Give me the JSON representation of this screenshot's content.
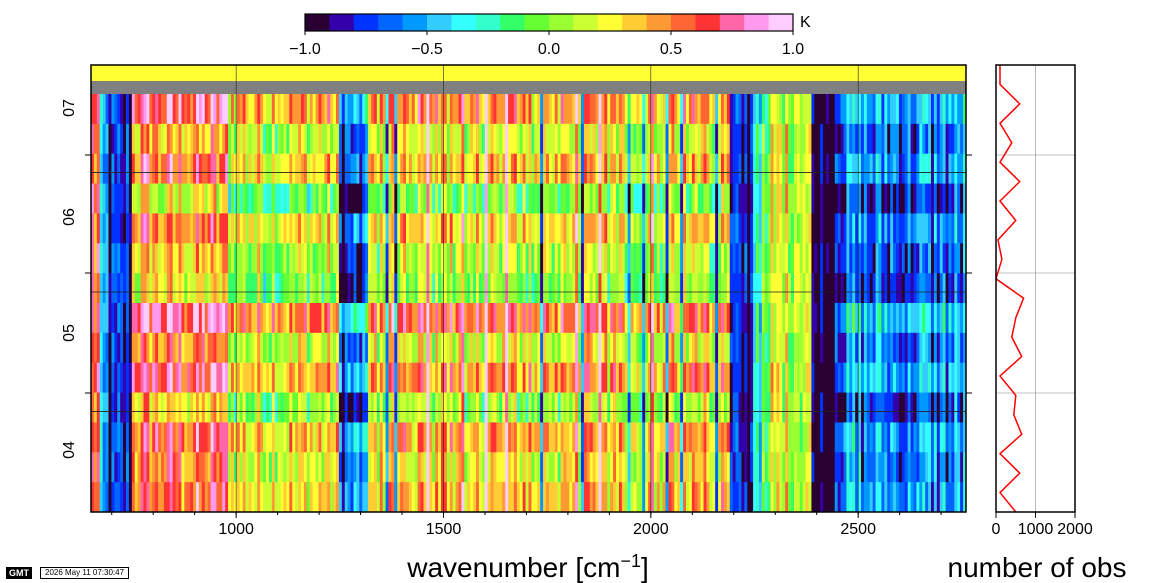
{
  "footer": {
    "logo_text": "GMT",
    "timestamp": "2026 May 11 07:30:47"
  },
  "colors": {
    "no_data": "#808080",
    "histogram_line": "#ff0000",
    "palette": [
      "#2a0033",
      "#3300aa",
      "#0033ff",
      "#0066ff",
      "#0099ff",
      "#33ccff",
      "#33ffff",
      "#33ffcc",
      "#33ff66",
      "#66ff33",
      "#99ff33",
      "#ccff33",
      "#ffff33",
      "#ffcc33",
      "#ff9933",
      "#ff6633",
      "#ff3333",
      "#ff66aa",
      "#ff99ee",
      "#ffccff"
    ]
  },
  "chart_data": [
    {
      "type": "heatmap",
      "colorbar": {
        "unit": "K",
        "range": [
          -1.0,
          1.0
        ],
        "ticks": [
          -1.0,
          -0.5,
          0.0,
          0.5,
          1.0
        ],
        "tick_labels": [
          "−1.0",
          "−0.5",
          "0.0",
          "0.5",
          "1.0"
        ],
        "placement": "top"
      },
      "x": {
        "label_main": "wavenumber [cm",
        "label_sup": "−1",
        "label_end": "]",
        "range": [
          650,
          2760
        ],
        "ticks": [
          1000,
          1500,
          2000,
          2500
        ],
        "tick_labels": [
          "1000",
          "1500",
          "2000",
          "2500"
        ]
      },
      "y": {
        "tick_labels": [
          "07",
          "06",
          "05",
          "04"
        ],
        "gridlines_at_row_boundary": [
          3,
          7,
          11
        ]
      },
      "rows_top_to_bottom": 15,
      "no_data_rows": [
        0
      ],
      "row_bias": [
        0,
        0.35,
        0.05,
        0.25,
        -0.15,
        0.2,
        0.0,
        -0.1,
        0.45,
        0.1,
        0.35,
        -0.05,
        0.3,
        0.15,
        0.25
      ],
      "spectral_regions": [
        {
          "from": 650,
          "to": 670,
          "value": 0.6
        },
        {
          "from": 670,
          "to": 690,
          "value": -0.6
        },
        {
          "from": 690,
          "to": 750,
          "value": -0.85
        },
        {
          "from": 750,
          "to": 980,
          "value": 0.35
        },
        {
          "from": 980,
          "to": 1250,
          "value": 0.05
        },
        {
          "from": 1250,
          "to": 1320,
          "value": -0.85
        },
        {
          "from": 1320,
          "to": 2190,
          "value": 0.1
        },
        {
          "from": 2190,
          "to": 2250,
          "value": -0.85
        },
        {
          "from": 2250,
          "to": 2290,
          "value": -0.2
        },
        {
          "from": 2290,
          "to": 2385,
          "value": 0.2
        },
        {
          "from": 2385,
          "to": 2440,
          "value": -1.0
        },
        {
          "from": 2440,
          "to": 2760,
          "value": -0.6
        }
      ],
      "grid": "dark lines at y tick boundaries and x ticks"
    },
    {
      "type": "line",
      "x": {
        "label": "number of obs",
        "range": [
          0,
          2000
        ],
        "ticks": [
          0,
          1000,
          2000
        ],
        "tick_labels": [
          "0",
          "1000",
          "2000"
        ]
      },
      "orientation": "vertical profile aligned with heatmap rows",
      "values_top_to_bottom": [
        100,
        100,
        600,
        100,
        400,
        100,
        600,
        100,
        500,
        50,
        150,
        0,
        700,
        500,
        400,
        650,
        100,
        500,
        450,
        650,
        100,
        600,
        100,
        500
      ],
      "grid": true
    }
  ]
}
